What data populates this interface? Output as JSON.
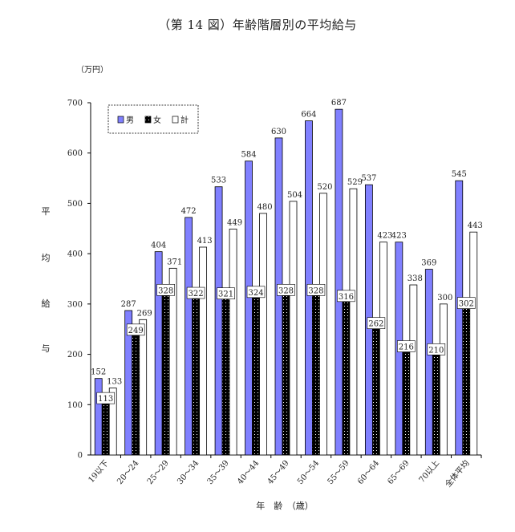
{
  "title": "（第 14 図）年齢階層別の平均給与",
  "chart_data": {
    "type": "bar",
    "title": "（第 14 図）年齢階層別の平均給与",
    "unit": "（万円）",
    "ylabel_chars": [
      "平",
      "均",
      "給",
      "与"
    ],
    "xlabel": "年　齢　（歳）",
    "ylim": [
      0,
      700
    ],
    "yticks": [
      0,
      100,
      200,
      300,
      400,
      500,
      600,
      700
    ],
    "categories": [
      "19以下",
      "20～24",
      "25～29",
      "30～34",
      "35～39",
      "40～44",
      "45～49",
      "50～54",
      "55～59",
      "60～64",
      "65～69",
      "70以上",
      "全体平均"
    ],
    "series": [
      {
        "name": "男",
        "color": "#8080ff",
        "values": [
          152,
          287,
          404,
          472,
          533,
          584,
          630,
          664,
          687,
          537,
          423,
          369,
          545
        ]
      },
      {
        "name": "女",
        "color": "#111111",
        "values": [
          113,
          249,
          328,
          322,
          321,
          324,
          328,
          328,
          316,
          262,
          216,
          210,
          302
        ]
      },
      {
        "name": "計",
        "color": "#ffffff",
        "values": [
          133,
          269,
          371,
          413,
          449,
          480,
          504,
          520,
          529,
          423,
          338,
          300,
          443
        ]
      }
    ],
    "legend_position": "top-left",
    "grid": false
  }
}
